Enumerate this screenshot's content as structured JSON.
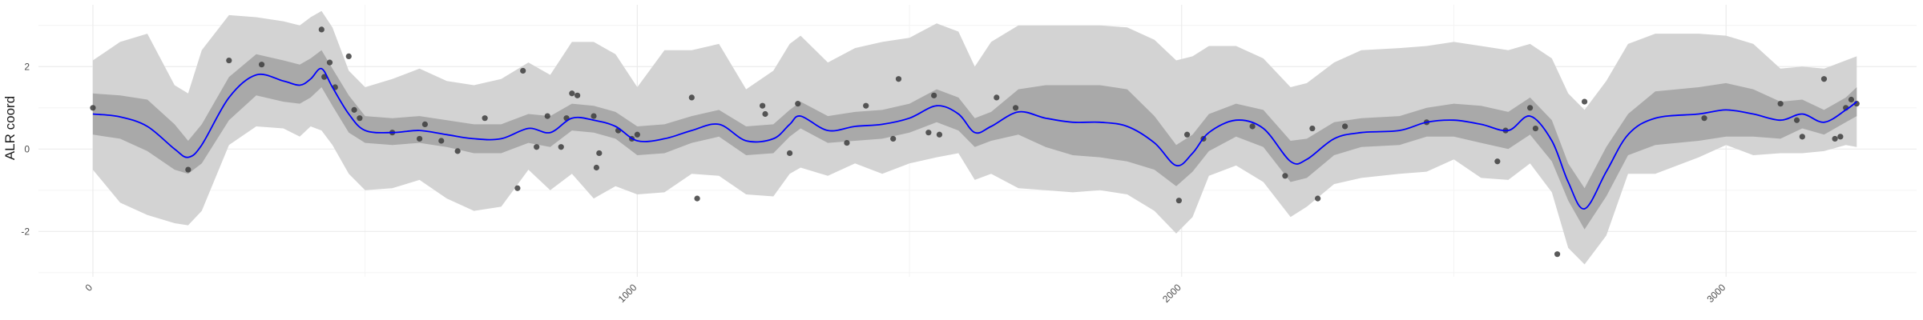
{
  "chart_data": {
    "type": "line",
    "title": "",
    "xlabel": "",
    "ylabel": "ALR coord",
    "xlim": [
      -100,
      3350
    ],
    "ylim": [
      -3.1,
      3.5
    ],
    "x_ticks": [
      0,
      1000,
      2000,
      3000
    ],
    "y_ticks": [
      -2,
      0,
      2
    ],
    "x_tick_labels": [
      "0",
      "1000",
      "2000",
      "3000"
    ],
    "y_tick_labels": [
      "-2",
      "0",
      "2"
    ],
    "grid": true,
    "legend": "none",
    "colors": {
      "mean_line": "#0000ff",
      "inner_band": "#a9a9a9",
      "outer_band": "#d3d3d3",
      "points": "#3d3d3d",
      "grid_major": "#ebebeb",
      "grid_minor": "#f4f4f4"
    },
    "series": [
      {
        "type": "line",
        "x": [
          0,
          50,
          100,
          150,
          175,
          200,
          250,
          300,
          350,
          380,
          400,
          420,
          440,
          470,
          500,
          550,
          600,
          650,
          700,
          750,
          800,
          840,
          880,
          920,
          960,
          1000,
          1050,
          1100,
          1150,
          1200,
          1250,
          1280,
          1300,
          1350,
          1400,
          1450,
          1500,
          1550,
          1590,
          1620,
          1650,
          1700,
          1750,
          1800,
          1850,
          1900,
          1950,
          1990,
          2020,
          2050,
          2100,
          2150,
          2200,
          2230,
          2280,
          2330,
          2400,
          2450,
          2500,
          2550,
          2600,
          2640,
          2680,
          2710,
          2740,
          2780,
          2820,
          2870,
          2950,
          3000,
          3050,
          3100,
          3140,
          3180,
          3220,
          3240
        ],
        "y": [
          0.85,
          0.78,
          0.55,
          0.0,
          -0.2,
          0.1,
          1.25,
          1.8,
          1.65,
          1.55,
          1.7,
          1.95,
          1.5,
          0.85,
          0.45,
          0.4,
          0.45,
          0.35,
          0.25,
          0.25,
          0.5,
          0.4,
          0.75,
          0.7,
          0.55,
          0.2,
          0.25,
          0.45,
          0.6,
          0.2,
          0.25,
          0.6,
          0.8,
          0.45,
          0.55,
          0.6,
          0.75,
          1.05,
          0.85,
          0.4,
          0.55,
          0.9,
          0.75,
          0.65,
          0.65,
          0.55,
          0.15,
          -0.4,
          -0.1,
          0.4,
          0.7,
          0.5,
          -0.3,
          -0.25,
          0.25,
          0.4,
          0.45,
          0.65,
          0.7,
          0.6,
          0.45,
          0.8,
          0.2,
          -0.8,
          -1.45,
          -0.55,
          0.35,
          0.75,
          0.85,
          0.95,
          0.85,
          0.7,
          0.85,
          0.65,
          0.95,
          1.15
        ]
      },
      {
        "type": "band",
        "x": [
          0,
          50,
          100,
          150,
          175,
          200,
          250,
          300,
          350,
          380,
          400,
          420,
          440,
          470,
          500,
          550,
          600,
          650,
          700,
          750,
          800,
          840,
          880,
          920,
          960,
          1000,
          1050,
          1100,
          1150,
          1200,
          1250,
          1280,
          1300,
          1350,
          1400,
          1450,
          1500,
          1550,
          1590,
          1620,
          1650,
          1700,
          1750,
          1800,
          1850,
          1900,
          1950,
          1990,
          2020,
          2050,
          2100,
          2150,
          2200,
          2230,
          2280,
          2330,
          2400,
          2450,
          2500,
          2550,
          2600,
          2640,
          2680,
          2710,
          2740,
          2780,
          2820,
          2870,
          2950,
          3000,
          3050,
          3100,
          3140,
          3180,
          3220,
          3240
        ],
        "low": [
          0.35,
          0.25,
          -0.05,
          -0.5,
          -0.6,
          -0.35,
          0.7,
          1.3,
          1.15,
          1.1,
          1.25,
          1.5,
          1.05,
          0.4,
          0.15,
          0.1,
          0.15,
          0.05,
          -0.1,
          -0.1,
          0.15,
          0.05,
          0.45,
          0.4,
          0.25,
          -0.15,
          -0.1,
          0.15,
          0.3,
          -0.15,
          -0.1,
          0.3,
          0.5,
          0.15,
          0.2,
          0.25,
          0.4,
          0.65,
          0.45,
          0.05,
          0.2,
          0.35,
          0.05,
          -0.15,
          -0.2,
          -0.3,
          -0.5,
          -0.9,
          -0.55,
          -0.05,
          0.3,
          0.05,
          -0.8,
          -0.7,
          -0.15,
          0.05,
          0.1,
          0.3,
          0.3,
          0.15,
          0.0,
          0.35,
          -0.3,
          -1.25,
          -1.95,
          -1.15,
          -0.15,
          0.1,
          0.2,
          0.3,
          0.3,
          0.25,
          0.5,
          0.35,
          0.65,
          0.8
        ],
        "high": [
          1.35,
          1.3,
          1.2,
          0.6,
          0.2,
          0.6,
          1.75,
          2.3,
          2.15,
          2.05,
          2.2,
          2.4,
          1.95,
          1.3,
          0.8,
          0.75,
          0.8,
          0.7,
          0.6,
          0.6,
          0.85,
          0.8,
          1.1,
          1.05,
          0.9,
          0.55,
          0.6,
          0.8,
          0.95,
          0.55,
          0.6,
          0.95,
          1.15,
          0.8,
          0.9,
          0.95,
          1.1,
          1.45,
          1.25,
          0.75,
          0.9,
          1.45,
          1.55,
          1.55,
          1.55,
          1.45,
          0.8,
          0.1,
          0.35,
          0.85,
          1.1,
          0.95,
          0.2,
          0.25,
          0.65,
          0.75,
          0.8,
          1.0,
          1.1,
          1.05,
          0.9,
          1.25,
          0.7,
          -0.35,
          -0.95,
          0.05,
          0.85,
          1.4,
          1.5,
          1.6,
          1.45,
          1.15,
          1.2,
          0.95,
          1.25,
          1.5
        ]
      },
      {
        "type": "band",
        "x": [
          0,
          50,
          100,
          150,
          175,
          200,
          250,
          300,
          350,
          380,
          400,
          420,
          440,
          470,
          500,
          550,
          600,
          650,
          700,
          750,
          800,
          840,
          880,
          920,
          960,
          1000,
          1050,
          1100,
          1150,
          1200,
          1250,
          1280,
          1300,
          1350,
          1400,
          1450,
          1500,
          1550,
          1590,
          1620,
          1650,
          1700,
          1750,
          1800,
          1850,
          1900,
          1950,
          1990,
          2020,
          2050,
          2100,
          2150,
          2200,
          2230,
          2280,
          2330,
          2400,
          2450,
          2500,
          2550,
          2600,
          2640,
          2680,
          2710,
          2740,
          2780,
          2820,
          2870,
          2950,
          3000,
          3050,
          3100,
          3140,
          3180,
          3220,
          3240
        ],
        "low": [
          -0.5,
          -1.3,
          -1.6,
          -1.8,
          -1.85,
          -1.5,
          0.1,
          0.55,
          0.5,
          0.3,
          0.55,
          0.45,
          0.1,
          -0.6,
          -1.0,
          -0.95,
          -0.75,
          -1.2,
          -1.5,
          -1.4,
          -0.5,
          -1.0,
          -0.6,
          -1.2,
          -0.9,
          -1.1,
          -1.05,
          -0.6,
          -0.65,
          -1.1,
          -1.15,
          -0.6,
          -0.45,
          -0.65,
          -0.35,
          -0.6,
          -0.35,
          -0.2,
          -0.1,
          -0.75,
          -0.6,
          -0.95,
          -1.0,
          -1.05,
          -1.0,
          -1.1,
          -1.5,
          -2.05,
          -1.65,
          -0.65,
          -0.4,
          -0.8,
          -1.65,
          -1.4,
          -0.85,
          -0.7,
          -0.6,
          -0.55,
          -0.25,
          -0.7,
          -0.75,
          -0.35,
          -1.05,
          -2.4,
          -2.8,
          -2.1,
          -0.6,
          -0.6,
          -0.2,
          0.1,
          -0.15,
          -0.1,
          -0.1,
          -0.05,
          0.1,
          0.05
        ],
        "high": [
          2.15,
          2.6,
          2.8,
          1.55,
          1.35,
          2.4,
          3.25,
          3.2,
          3.1,
          3.0,
          3.2,
          3.35,
          2.95,
          1.9,
          1.5,
          1.7,
          1.95,
          1.65,
          1.55,
          1.7,
          2.1,
          1.8,
          2.6,
          2.6,
          2.3,
          1.5,
          2.4,
          2.4,
          2.55,
          1.45,
          1.9,
          2.55,
          2.75,
          2.1,
          2.45,
          2.6,
          2.7,
          3.05,
          2.85,
          2.0,
          2.6,
          3.0,
          3.0,
          3.0,
          3.0,
          2.95,
          2.65,
          2.15,
          2.25,
          2.5,
          2.5,
          2.2,
          1.5,
          1.6,
          2.1,
          2.4,
          2.45,
          2.5,
          2.6,
          2.5,
          2.4,
          2.55,
          2.2,
          1.35,
          0.95,
          1.65,
          2.55,
          2.8,
          2.8,
          2.75,
          2.55,
          1.95,
          2.0,
          1.95,
          2.15,
          2.25
        ]
      },
      {
        "type": "scatter",
        "x": [
          0,
          175,
          250,
          310,
          420,
          425,
          435,
          445,
          470,
          480,
          490,
          550,
          600,
          610,
          640,
          670,
          720,
          780,
          790,
          815,
          835,
          860,
          870,
          880,
          890,
          920,
          925,
          930,
          965,
          990,
          1000,
          1100,
          1110,
          1230,
          1235,
          1280,
          1295,
          1385,
          1420,
          1470,
          1480,
          1535,
          1545,
          1555,
          1660,
          1695,
          1995,
          2010,
          2040,
          2130,
          2190,
          2240,
          2250,
          2300,
          2450,
          2580,
          2595,
          2640,
          2650,
          2690,
          2740,
          2960,
          3100,
          3130,
          3140,
          3180,
          3200,
          3210,
          3220,
          3230,
          3240
        ],
        "y": [
          1.0,
          -0.5,
          2.15,
          2.05,
          2.9,
          1.75,
          2.1,
          1.5,
          2.25,
          0.95,
          0.75,
          0.4,
          0.25,
          0.6,
          0.2,
          -0.05,
          0.75,
          -0.95,
          1.9,
          0.05,
          0.8,
          0.05,
          0.75,
          1.35,
          1.3,
          0.8,
          -0.45,
          -0.1,
          0.45,
          0.25,
          0.35,
          1.25,
          -1.2,
          1.05,
          0.85,
          -0.1,
          1.1,
          0.15,
          1.05,
          0.25,
          1.7,
          0.4,
          1.3,
          0.35,
          1.25,
          1.0,
          -1.25,
          0.35,
          0.25,
          0.55,
          -0.65,
          0.5,
          -1.2,
          0.55,
          0.65,
          -0.3,
          0.45,
          1.0,
          0.5,
          -2.55,
          1.15,
          0.75,
          1.1,
          0.7,
          0.3,
          1.7,
          0.25,
          0.3,
          1.0,
          1.2,
          1.1
        ]
      }
    ]
  }
}
